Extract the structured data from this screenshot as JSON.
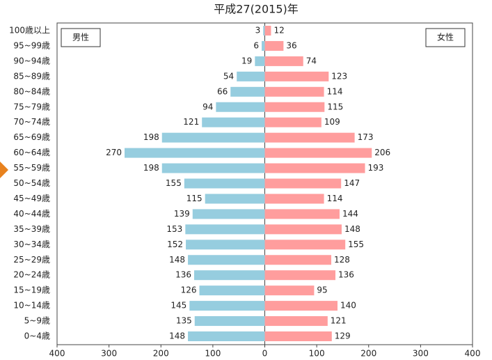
{
  "chart_data": {
    "type": "pyramid",
    "title": "平成27(2015)年",
    "categories": [
      "100歳以上",
      "95~99歳",
      "90~94歳",
      "85~89歳",
      "80~84歳",
      "75~79歳",
      "70~74歳",
      "65~69歳",
      "60~64歳",
      "55~59歳",
      "50~54歳",
      "45~49歳",
      "40~44歳",
      "35~39歳",
      "30~34歳",
      "25~29歳",
      "20~24歳",
      "15~19歳",
      "10~14歳",
      "5~9歳",
      "0~4歳"
    ],
    "series": [
      {
        "name": "男性",
        "color": "#96cddf",
        "direction": "left",
        "values": [
          3,
          6,
          19,
          54,
          66,
          94,
          121,
          198,
          270,
          198,
          155,
          115,
          139,
          153,
          152,
          148,
          136,
          126,
          145,
          135,
          148
        ]
      },
      {
        "name": "女性",
        "color": "#ff9d9d",
        "direction": "right",
        "values": [
          12,
          36,
          74,
          123,
          114,
          115,
          109,
          173,
          206,
          193,
          147,
          114,
          144,
          148,
          155,
          128,
          136,
          95,
          140,
          121,
          129
        ]
      }
    ],
    "xlim": [
      -400,
      400
    ],
    "xticks": [
      {
        "value": -400,
        "label": "400"
      },
      {
        "value": -300,
        "label": "300"
      },
      {
        "value": -200,
        "label": "200"
      },
      {
        "value": -100,
        "label": "100"
      },
      0,
      100,
      200,
      300,
      400
    ]
  }
}
